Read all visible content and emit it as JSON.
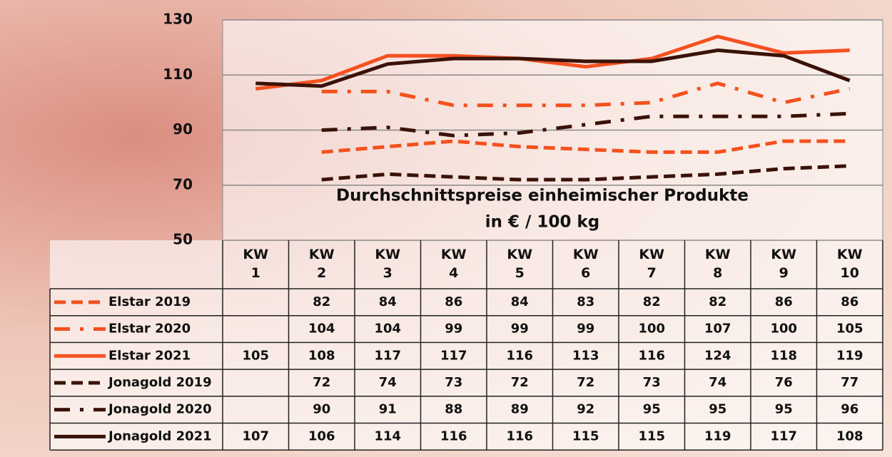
{
  "chart_data": {
    "type": "line",
    "title": "Durchschnittspreise einheimischer Produkte",
    "subtitle": "in € / 100 kg",
    "categories": [
      "KW 1",
      "KW 2",
      "KW 3",
      "KW 4",
      "KW 5",
      "KW 6",
      "KW 7",
      "KW 8",
      "KW 9",
      "KW 10"
    ],
    "ylim": [
      50,
      130
    ],
    "yticks": [
      50,
      70,
      90,
      110,
      130
    ],
    "grid": true,
    "series": [
      {
        "name": "Elstar 2019",
        "color": "#f4511e",
        "dash": "dashed",
        "values": [
          null,
          82,
          84,
          86,
          84,
          83,
          82,
          82,
          86,
          86
        ]
      },
      {
        "name": "Elstar 2020",
        "color": "#f4511e",
        "dash": "dashdot",
        "values": [
          null,
          104,
          104,
          99,
          99,
          99,
          100,
          107,
          100,
          105
        ]
      },
      {
        "name": "Elstar 2021",
        "color": "#f4511e",
        "dash": "solid",
        "values": [
          105,
          108,
          117,
          117,
          116,
          113,
          116,
          124,
          118,
          119
        ]
      },
      {
        "name": "Jonagold 2019",
        "color": "#3a1208",
        "dash": "dashed",
        "values": [
          null,
          72,
          74,
          73,
          72,
          72,
          73,
          74,
          76,
          77
        ]
      },
      {
        "name": "Jonagold 2020",
        "color": "#3a1208",
        "dash": "dashdot",
        "values": [
          null,
          90,
          91,
          88,
          89,
          92,
          95,
          95,
          95,
          96
        ]
      },
      {
        "name": "Jonagold 2021",
        "color": "#3a1208",
        "dash": "solid",
        "values": [
          107,
          106,
          114,
          116,
          116,
          115,
          115,
          119,
          117,
          108
        ]
      }
    ]
  }
}
